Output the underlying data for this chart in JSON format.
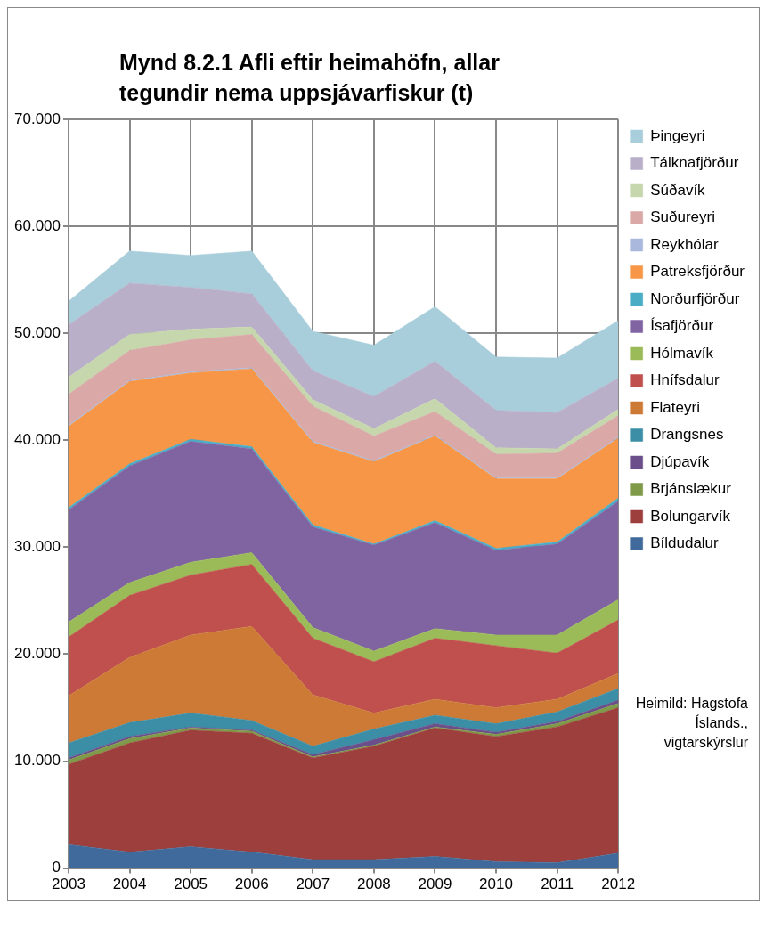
{
  "chart_data": {
    "type": "area",
    "title": "Mynd 8.2.1 Afli eftir heimahöfn, allar tegundir nema uppsjávarfiskur (t)",
    "categories": [
      "2003",
      "2004",
      "2005",
      "2006",
      "2007",
      "2008",
      "2009",
      "2010",
      "2011",
      "2012"
    ],
    "stacked": true,
    "grid": true,
    "legend": "right",
    "ylim": [
      0,
      70000
    ],
    "yticks": [
      {
        "value": 0,
        "label": "0"
      },
      {
        "value": 10000,
        "label": "10.000"
      },
      {
        "value": 20000,
        "label": "20.000"
      },
      {
        "value": 30000,
        "label": "30.000"
      },
      {
        "value": 40000,
        "label": "40.000"
      },
      {
        "value": 50000,
        "label": "50.000"
      },
      {
        "value": 60000,
        "label": "60.000"
      },
      {
        "value": 70000,
        "label": "70.000"
      }
    ],
    "series": [
      {
        "name": "Bíldudalur",
        "color": "#3f6a9b",
        "values": [
          2200,
          1500,
          2000,
          1500,
          800,
          800,
          1100,
          600,
          500,
          1400
        ]
      },
      {
        "name": "Bolungarvík",
        "color": "#9c3f3d",
        "values": [
          7500,
          10200,
          10900,
          11100,
          9500,
          10600,
          12000,
          11700,
          12700,
          13600
        ]
      },
      {
        "name": "Brjánslækur",
        "color": "#7f9a48",
        "values": [
          400,
          400,
          200,
          200,
          100,
          100,
          100,
          200,
          300,
          400
        ]
      },
      {
        "name": "Djúpavík",
        "color": "#6a4f8a",
        "values": [
          200,
          200,
          100,
          100,
          200,
          500,
          300,
          200,
          200,
          300
        ]
      },
      {
        "name": "Drangsnes",
        "color": "#3b8ea5",
        "values": [
          1400,
          1300,
          1300,
          900,
          800,
          1000,
          800,
          800,
          900,
          1100
        ]
      },
      {
        "name": "Flateyri",
        "color": "#cc7a36",
        "values": [
          4400,
          6100,
          7300,
          8800,
          4800,
          1500,
          1500,
          1500,
          1200,
          1400
        ]
      },
      {
        "name": "Hnífsdalur",
        "color": "#c0504d",
        "values": [
          5500,
          5800,
          5600,
          5800,
          5300,
          4800,
          5700,
          5800,
          4300,
          5000
        ]
      },
      {
        "name": "Hólmavík",
        "color": "#9bbb59",
        "values": [
          1400,
          1200,
          1200,
          1100,
          1000,
          1000,
          900,
          1000,
          1700,
          1900
        ]
      },
      {
        "name": "Ísafjörður",
        "color": "#8064a2",
        "values": [
          10500,
          10900,
          11300,
          9700,
          9400,
          9900,
          9900,
          7900,
          8500,
          9200
        ]
      },
      {
        "name": "Norðurfjörður",
        "color": "#4bacc6",
        "values": [
          200,
          200,
          200,
          200,
          200,
          100,
          200,
          200,
          200,
          300
        ]
      },
      {
        "name": "Patreksfjörður",
        "color": "#f79646",
        "values": [
          7600,
          7700,
          6200,
          7300,
          7700,
          7700,
          7900,
          6500,
          5900,
          5600
        ]
      },
      {
        "name": "Reykhólar",
        "color": "#a9b8dc",
        "values": [
          100,
          100,
          100,
          100,
          100,
          100,
          100,
          100,
          100,
          100
        ]
      },
      {
        "name": "Suðureyri",
        "color": "#d9a8a7",
        "values": [
          2900,
          2800,
          3000,
          3100,
          3300,
          2300,
          2200,
          2200,
          2300,
          2000
        ]
      },
      {
        "name": "Súðavík",
        "color": "#c6d6ad",
        "values": [
          1600,
          1500,
          1000,
          700,
          600,
          700,
          1200,
          600,
          400,
          600
        ]
      },
      {
        "name": "Tálknafjörður",
        "color": "#b9afc9",
        "values": [
          4900,
          4800,
          3900,
          3100,
          2700,
          3000,
          3500,
          3500,
          3400,
          2900
        ]
      },
      {
        "name": "Þingeyri",
        "color": "#a9cedb",
        "values": [
          2200,
          3000,
          3000,
          4000,
          3700,
          4800,
          5100,
          5000,
          5100,
          5400
        ]
      }
    ],
    "annotations": [
      "Heimild: Hagstofa Íslands., vigtarskýrslur"
    ]
  }
}
